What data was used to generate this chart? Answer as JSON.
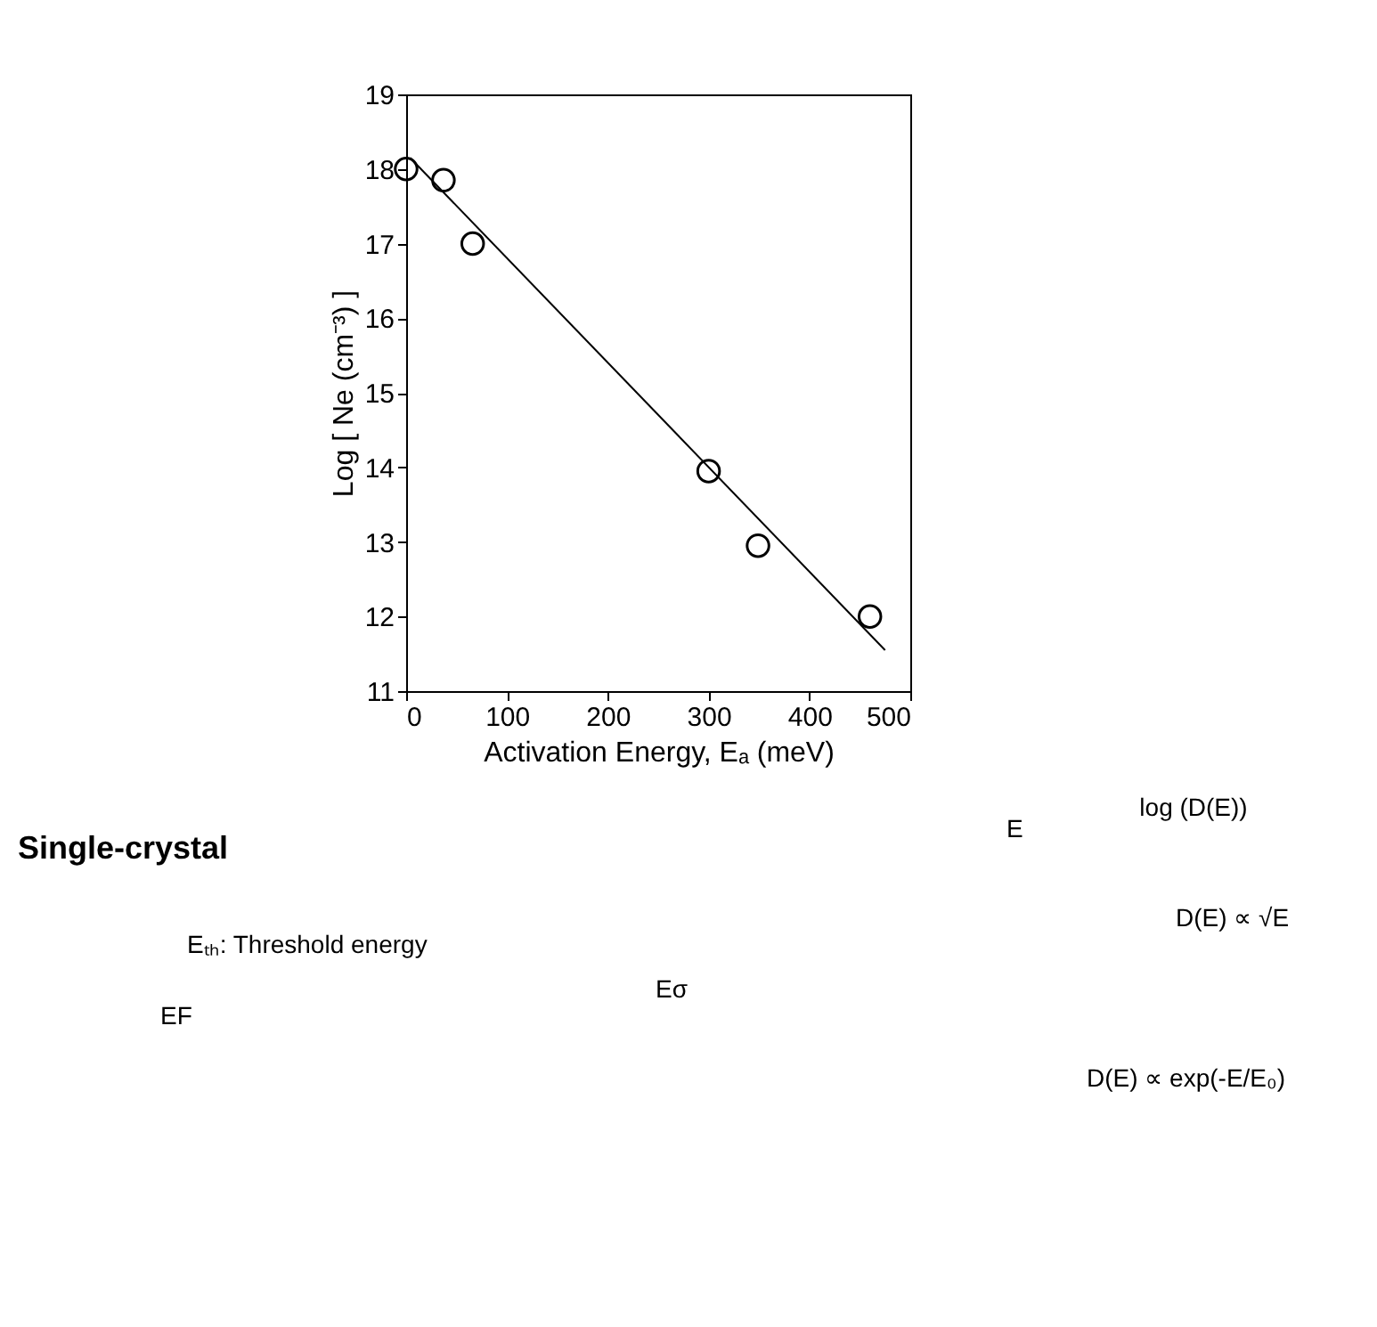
{
  "chart_data": [
    {
      "type": "scatter",
      "xlabel": "Activation Energy, Eₐ (meV)",
      "ylabel": "Log [ Ne (cm⁻³) ]",
      "xlim": [
        0,
        500
      ],
      "xticks": [
        0,
        100,
        200,
        300,
        400,
        500
      ],
      "ylim": [
        11,
        19
      ],
      "yticks": [
        11,
        12,
        13,
        14,
        15,
        16,
        17,
        18,
        19
      ],
      "grid": false,
      "marker": "circle",
      "series": [
        {
          "type": "scatter",
          "color": "#000000",
          "x": [
            0,
            37,
            66,
            300,
            349,
            460
          ],
          "values": [
            18.0,
            17.85,
            17.0,
            13.95,
            12.95,
            12.0
          ]
        },
        {
          "type": "line",
          "color": "#000000",
          "marker": "none",
          "line_style": "solid",
          "x": [
            4,
            475
          ],
          "values": [
            18.15,
            11.55
          ]
        }
      ]
    },
    {
      "type": "other",
      "title": "Single-crystal",
      "annotations": [
        "Eₜₕ: Threshold energy",
        "EF",
        "Eσ",
        "E",
        "log (D(E))",
        "D(E) ∝ √E",
        "D(E) ∝ exp(-E/E₀)"
      ]
    }
  ]
}
